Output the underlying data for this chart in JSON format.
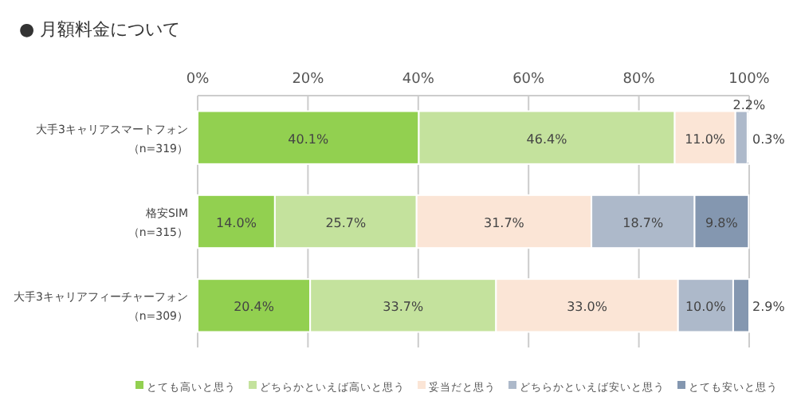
{
  "chart_data": {
    "type": "bar",
    "orientation": "horizontal",
    "stacked": true,
    "title": "● 月額料金について",
    "categories": [
      "大手3キャリアスマートフォン（n=319）",
      "格安SIM（n=315）",
      "大手3キャリアフィーチャーフォン（n=309）"
    ],
    "series": [
      {
        "name": "とても高いと思う",
        "color": "#92d050",
        "values": [
          40.1,
          14.0,
          20.4
        ],
        "value_labels": [
          "40.1%",
          "14.0%",
          "20.4%"
        ]
      },
      {
        "name": "どちらかといえば高いと思う",
        "color": "#c4e29d",
        "values": [
          46.4,
          25.7,
          33.7
        ],
        "value_labels": [
          "46.4%",
          "25.7%",
          "33.7%"
        ]
      },
      {
        "name": "妥当だと思う",
        "color": "#fbe5d6",
        "values": [
          11.0,
          31.7,
          33.0
        ],
        "value_labels": [
          "11.0%",
          "31.7%",
          "33.0%"
        ]
      },
      {
        "name": "どちらかといえば安いと思う",
        "color": "#adb9ca",
        "values": [
          2.2,
          18.7,
          10.0
        ],
        "value_labels": [
          "2.2%",
          "18.7%",
          "10.0%"
        ]
      },
      {
        "name": "とても安いと思う",
        "color": "#8497b0",
        "values": [
          0.3,
          9.8,
          2.9
        ],
        "value_labels": [
          "0.3%",
          "9.8%",
          "2.9%"
        ]
      }
    ],
    "xlim": [
      0,
      100
    ],
    "xticks": [
      {
        "value": 0,
        "label": "0%"
      },
      {
        "value": 20,
        "label": "20%"
      },
      {
        "value": 40,
        "label": "40%"
      },
      {
        "value": 60,
        "label": "60%"
      },
      {
        "value": 80,
        "label": "80%"
      },
      {
        "value": 100,
        "label": "100%"
      }
    ],
    "grid": "x",
    "legend": "bottom"
  }
}
